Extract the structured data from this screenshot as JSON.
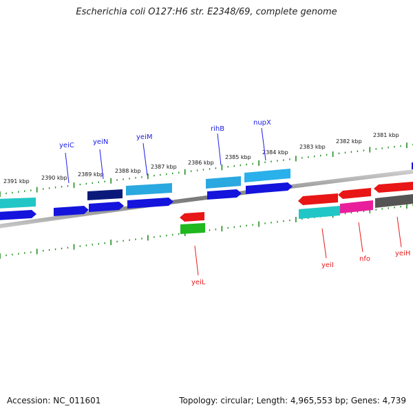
{
  "title": "Escherichia coli O127:H6 str. E2348/69, complete genome",
  "accession": "Accession: NC_011601",
  "summary": "Topology: circular; Length: 4,965,553 bp; Genes: 4,739",
  "colors": {
    "backbone": "#8a8a8a",
    "tick": "#1e8c1e",
    "label_forward": "#1a1ae6",
    "label_reverse": "#e61a1a"
  },
  "scale_labels": [
    "2391 kbp",
    "2390 kbp",
    "2389 kbp",
    "2388 kbp",
    "2387 kbp",
    "2386 kbp",
    "2385 kbp",
    "2384 kbp",
    "2383 kbp",
    "2382 kbp",
    "2381 kbp"
  ],
  "gene_labels_top": [
    "yeiC",
    "yeiN",
    "yeiM",
    "rihB",
    "nupX"
  ],
  "gene_labels_bottom": [
    "yeiL",
    "yeiI",
    "nfo",
    "yeiH"
  ]
}
